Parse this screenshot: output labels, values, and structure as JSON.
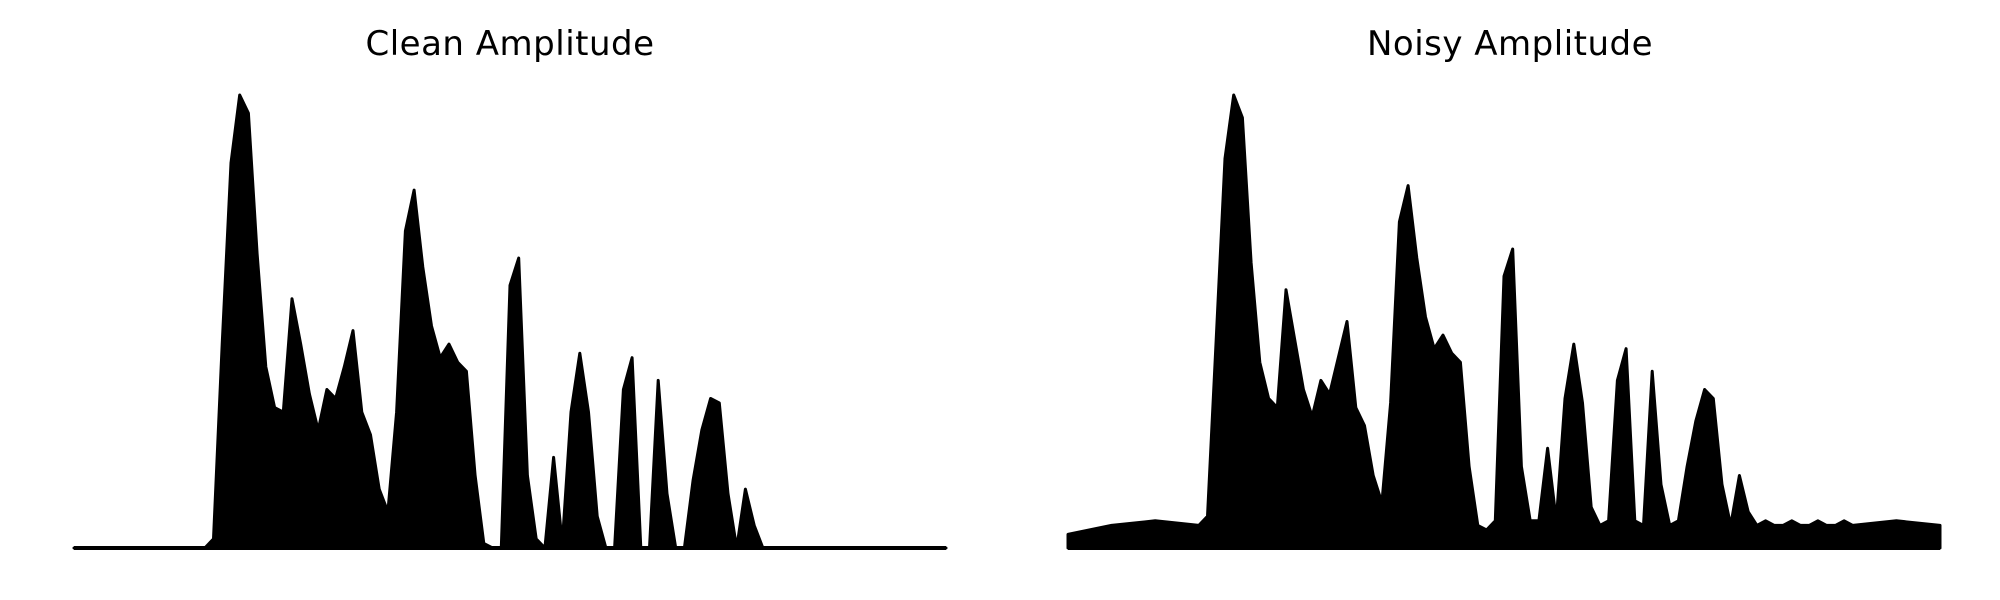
{
  "chart_data": [
    {
      "type": "area",
      "title": "Clean Amplitude",
      "xlabel": "",
      "ylabel": "",
      "axes_visible": false,
      "grid": false,
      "color": "#000000",
      "ylim": [
        0,
        1.0
      ],
      "x": [
        0.0,
        0.05,
        0.1,
        0.15,
        0.16,
        0.17,
        0.18,
        0.19,
        0.2,
        0.21,
        0.22,
        0.23,
        0.24,
        0.25,
        0.26,
        0.27,
        0.28,
        0.29,
        0.3,
        0.31,
        0.32,
        0.33,
        0.34,
        0.35,
        0.36,
        0.37,
        0.38,
        0.39,
        0.4,
        0.41,
        0.42,
        0.43,
        0.44,
        0.45,
        0.46,
        0.47,
        0.48,
        0.49,
        0.5,
        0.51,
        0.52,
        0.53,
        0.54,
        0.55,
        0.56,
        0.57,
        0.58,
        0.59,
        0.6,
        0.61,
        0.62,
        0.63,
        0.64,
        0.65,
        0.66,
        0.67,
        0.68,
        0.69,
        0.7,
        0.71,
        0.72,
        0.73,
        0.74,
        0.75,
        0.76,
        0.77,
        0.78,
        0.79,
        0.8,
        0.81,
        0.82,
        0.83,
        0.84,
        0.85,
        0.86,
        0.87,
        0.88,
        0.89,
        0.9,
        0.95,
        1.0
      ],
      "values": [
        0.0,
        0.0,
        0.0,
        0.0,
        0.02,
        0.45,
        0.85,
        1.0,
        0.96,
        0.65,
        0.4,
        0.31,
        0.3,
        0.55,
        0.45,
        0.34,
        0.26,
        0.35,
        0.33,
        0.4,
        0.48,
        0.3,
        0.25,
        0.13,
        0.08,
        0.3,
        0.7,
        0.79,
        0.62,
        0.49,
        0.42,
        0.45,
        0.41,
        0.39,
        0.16,
        0.01,
        0.0,
        0.0,
        0.58,
        0.64,
        0.16,
        0.02,
        0.0,
        0.2,
        0.01,
        0.3,
        0.43,
        0.3,
        0.07,
        0.0,
        0.0,
        0.35,
        0.42,
        0.0,
        0.0,
        0.37,
        0.12,
        0.0,
        0.0,
        0.15,
        0.26,
        0.33,
        0.32,
        0.12,
        0.0,
        0.13,
        0.05,
        0.0,
        0.0,
        0.0,
        0.0,
        0.0,
        0.0,
        0.0,
        0.0,
        0.0,
        0.0,
        0.0,
        0.0,
        0.0,
        0.0
      ]
    },
    {
      "type": "area",
      "title": "Noisy Amplitude",
      "xlabel": "",
      "ylabel": "",
      "axes_visible": false,
      "grid": false,
      "color": "#000000",
      "ylim": [
        0,
        1.0
      ],
      "x": [
        0.0,
        0.05,
        0.1,
        0.15,
        0.16,
        0.17,
        0.18,
        0.19,
        0.2,
        0.21,
        0.22,
        0.23,
        0.24,
        0.25,
        0.26,
        0.27,
        0.28,
        0.29,
        0.3,
        0.31,
        0.32,
        0.33,
        0.34,
        0.35,
        0.36,
        0.37,
        0.38,
        0.39,
        0.4,
        0.41,
        0.42,
        0.43,
        0.44,
        0.45,
        0.46,
        0.47,
        0.48,
        0.49,
        0.5,
        0.51,
        0.52,
        0.53,
        0.54,
        0.55,
        0.56,
        0.57,
        0.58,
        0.59,
        0.6,
        0.61,
        0.62,
        0.63,
        0.64,
        0.65,
        0.66,
        0.67,
        0.68,
        0.69,
        0.7,
        0.71,
        0.72,
        0.73,
        0.74,
        0.75,
        0.76,
        0.77,
        0.78,
        0.79,
        0.8,
        0.81,
        0.82,
        0.83,
        0.84,
        0.85,
        0.86,
        0.87,
        0.88,
        0.89,
        0.9,
        0.95,
        1.0
      ],
      "values": [
        0.03,
        0.05,
        0.06,
        0.05,
        0.07,
        0.46,
        0.86,
        1.0,
        0.95,
        0.63,
        0.41,
        0.33,
        0.31,
        0.57,
        0.46,
        0.35,
        0.29,
        0.37,
        0.34,
        0.42,
        0.5,
        0.31,
        0.27,
        0.16,
        0.1,
        0.32,
        0.72,
        0.8,
        0.64,
        0.51,
        0.44,
        0.47,
        0.43,
        0.41,
        0.18,
        0.05,
        0.04,
        0.06,
        0.6,
        0.66,
        0.18,
        0.06,
        0.06,
        0.22,
        0.06,
        0.33,
        0.45,
        0.32,
        0.09,
        0.05,
        0.06,
        0.37,
        0.44,
        0.06,
        0.05,
        0.39,
        0.14,
        0.05,
        0.06,
        0.18,
        0.28,
        0.35,
        0.33,
        0.14,
        0.05,
        0.16,
        0.08,
        0.05,
        0.06,
        0.05,
        0.05,
        0.06,
        0.05,
        0.05,
        0.06,
        0.05,
        0.05,
        0.06,
        0.05,
        0.06,
        0.05
      ]
    }
  ]
}
